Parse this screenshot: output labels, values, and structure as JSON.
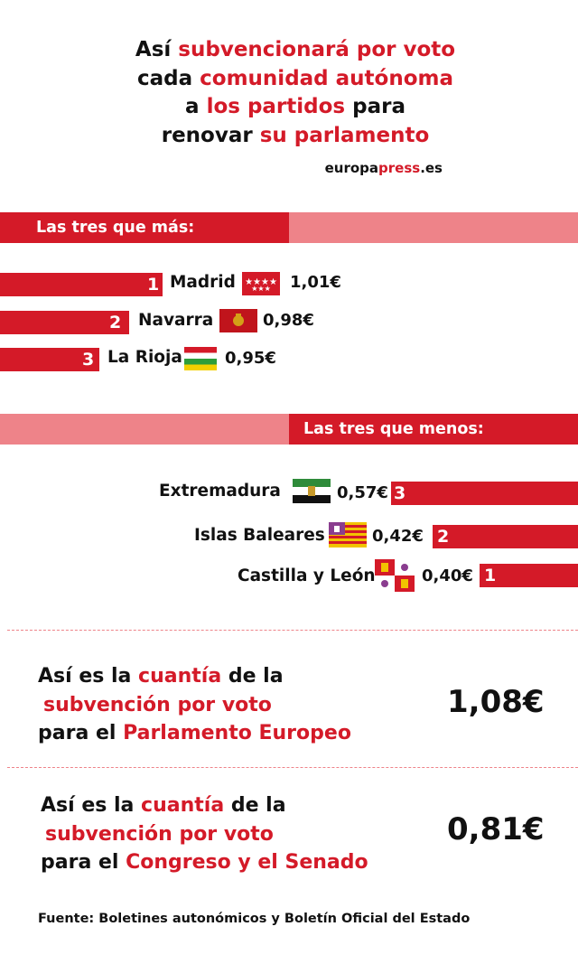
{
  "title": {
    "line1": [
      "Así ",
      "subvencionará por voto"
    ],
    "line2": [
      "cada ",
      "comunidad autónoma"
    ],
    "line3": [
      "a ",
      "los partidos",
      " para"
    ],
    "line4": [
      "renovar ",
      "su parlamento"
    ]
  },
  "brand": {
    "prefix": "europa",
    "accent": "press",
    "suffix": ".es"
  },
  "colors": {
    "accent": "#d41a28",
    "accent_light": "#ee8389",
    "text": "#111111"
  },
  "chart_data": [
    {
      "type": "bar",
      "title": "Las tres que más:",
      "series": [
        {
          "values": [
            1.01,
            0.98,
            0.95
          ]
        }
      ],
      "categories": [
        "Madrid",
        "Navarra",
        "La Rioja"
      ],
      "ranks": [
        "1",
        "2",
        "3"
      ],
      "values": [
        1.01,
        0.98,
        0.95
      ],
      "value_labels": [
        "1,01€",
        "0,98€",
        "0,95€"
      ]
    },
    {
      "type": "bar",
      "title": "Las tres que menos:",
      "categories": [
        "Extremadura",
        "Islas Baleares",
        "Castilla y León"
      ],
      "ranks": [
        "3",
        "2",
        "1"
      ],
      "values": [
        0.57,
        0.42,
        0.4
      ],
      "value_labels": [
        "0,57€",
        "0,42€",
        "0,40€"
      ]
    }
  ],
  "flags": [
    "madrid-flag-icon",
    "navarra-flag-icon",
    "la-rioja-flag-icon",
    "extremadura-flag-icon",
    "islas-baleares-flag-icon",
    "castilla-y-leon-flag-icon"
  ],
  "stats": [
    {
      "line1": [
        "Así es la ",
        "cuantía",
        " de la"
      ],
      "line2": "subvención por voto",
      "line3": [
        "para el ",
        "Parlamento Europeo"
      ],
      "value": "1,08€"
    },
    {
      "line1": [
        "Así es la ",
        "cuantía",
        " de la"
      ],
      "line2": "subvención por voto",
      "line3": [
        "para el ",
        "Congreso y el Senado"
      ],
      "value": "0,81€"
    }
  ],
  "source": "Fuente: Boletines autonómicos y Boletín Oficial del Estado"
}
